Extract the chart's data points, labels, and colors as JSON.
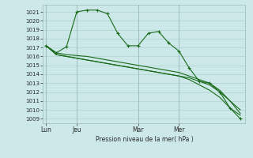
{
  "background_color": "#cce8e8",
  "grid_color": "#b0d0d0",
  "line_color": "#1a6b1a",
  "ylabel": "Pression niveau de la mer( hPa )",
  "ylim": [
    1008.5,
    1021.8
  ],
  "yticks": [
    1009,
    1010,
    1011,
    1012,
    1013,
    1014,
    1015,
    1016,
    1017,
    1018,
    1019,
    1020,
    1021
  ],
  "xtick_labels": [
    "Lun",
    "Jeu",
    "Mar",
    "Mer"
  ],
  "xtick_positions": [
    0,
    3,
    9,
    13
  ],
  "xlim": [
    -0.3,
    19.5
  ],
  "num_points": 20,
  "series1": [
    1017.2,
    1016.4,
    1017.1,
    1021.0,
    1021.2,
    1021.2,
    1020.8,
    1018.6,
    1017.2,
    1017.2,
    1018.6,
    1018.8,
    1017.5,
    1016.6,
    1014.7,
    1013.2,
    1013.0,
    1012.0,
    1010.2,
    1009.0
  ],
  "series2": [
    1017.2,
    1016.4,
    1016.2,
    1016.1,
    1016.0,
    1015.8,
    1015.6,
    1015.4,
    1015.2,
    1015.0,
    1014.8,
    1014.6,
    1014.4,
    1014.2,
    1013.8,
    1013.4,
    1013.0,
    1012.2,
    1011.0,
    1010.0
  ],
  "series3": [
    1017.2,
    1016.2,
    1016.0,
    1015.8,
    1015.6,
    1015.4,
    1015.2,
    1015.0,
    1014.8,
    1014.6,
    1014.4,
    1014.2,
    1014.0,
    1013.8,
    1013.6,
    1013.2,
    1012.8,
    1012.0,
    1011.0,
    1009.6
  ],
  "series4": [
    1017.2,
    1016.2,
    1016.0,
    1015.8,
    1015.6,
    1015.4,
    1015.2,
    1015.0,
    1014.8,
    1014.6,
    1014.4,
    1014.2,
    1014.0,
    1013.8,
    1013.4,
    1012.8,
    1012.2,
    1011.4,
    1010.2,
    1009.4
  ]
}
